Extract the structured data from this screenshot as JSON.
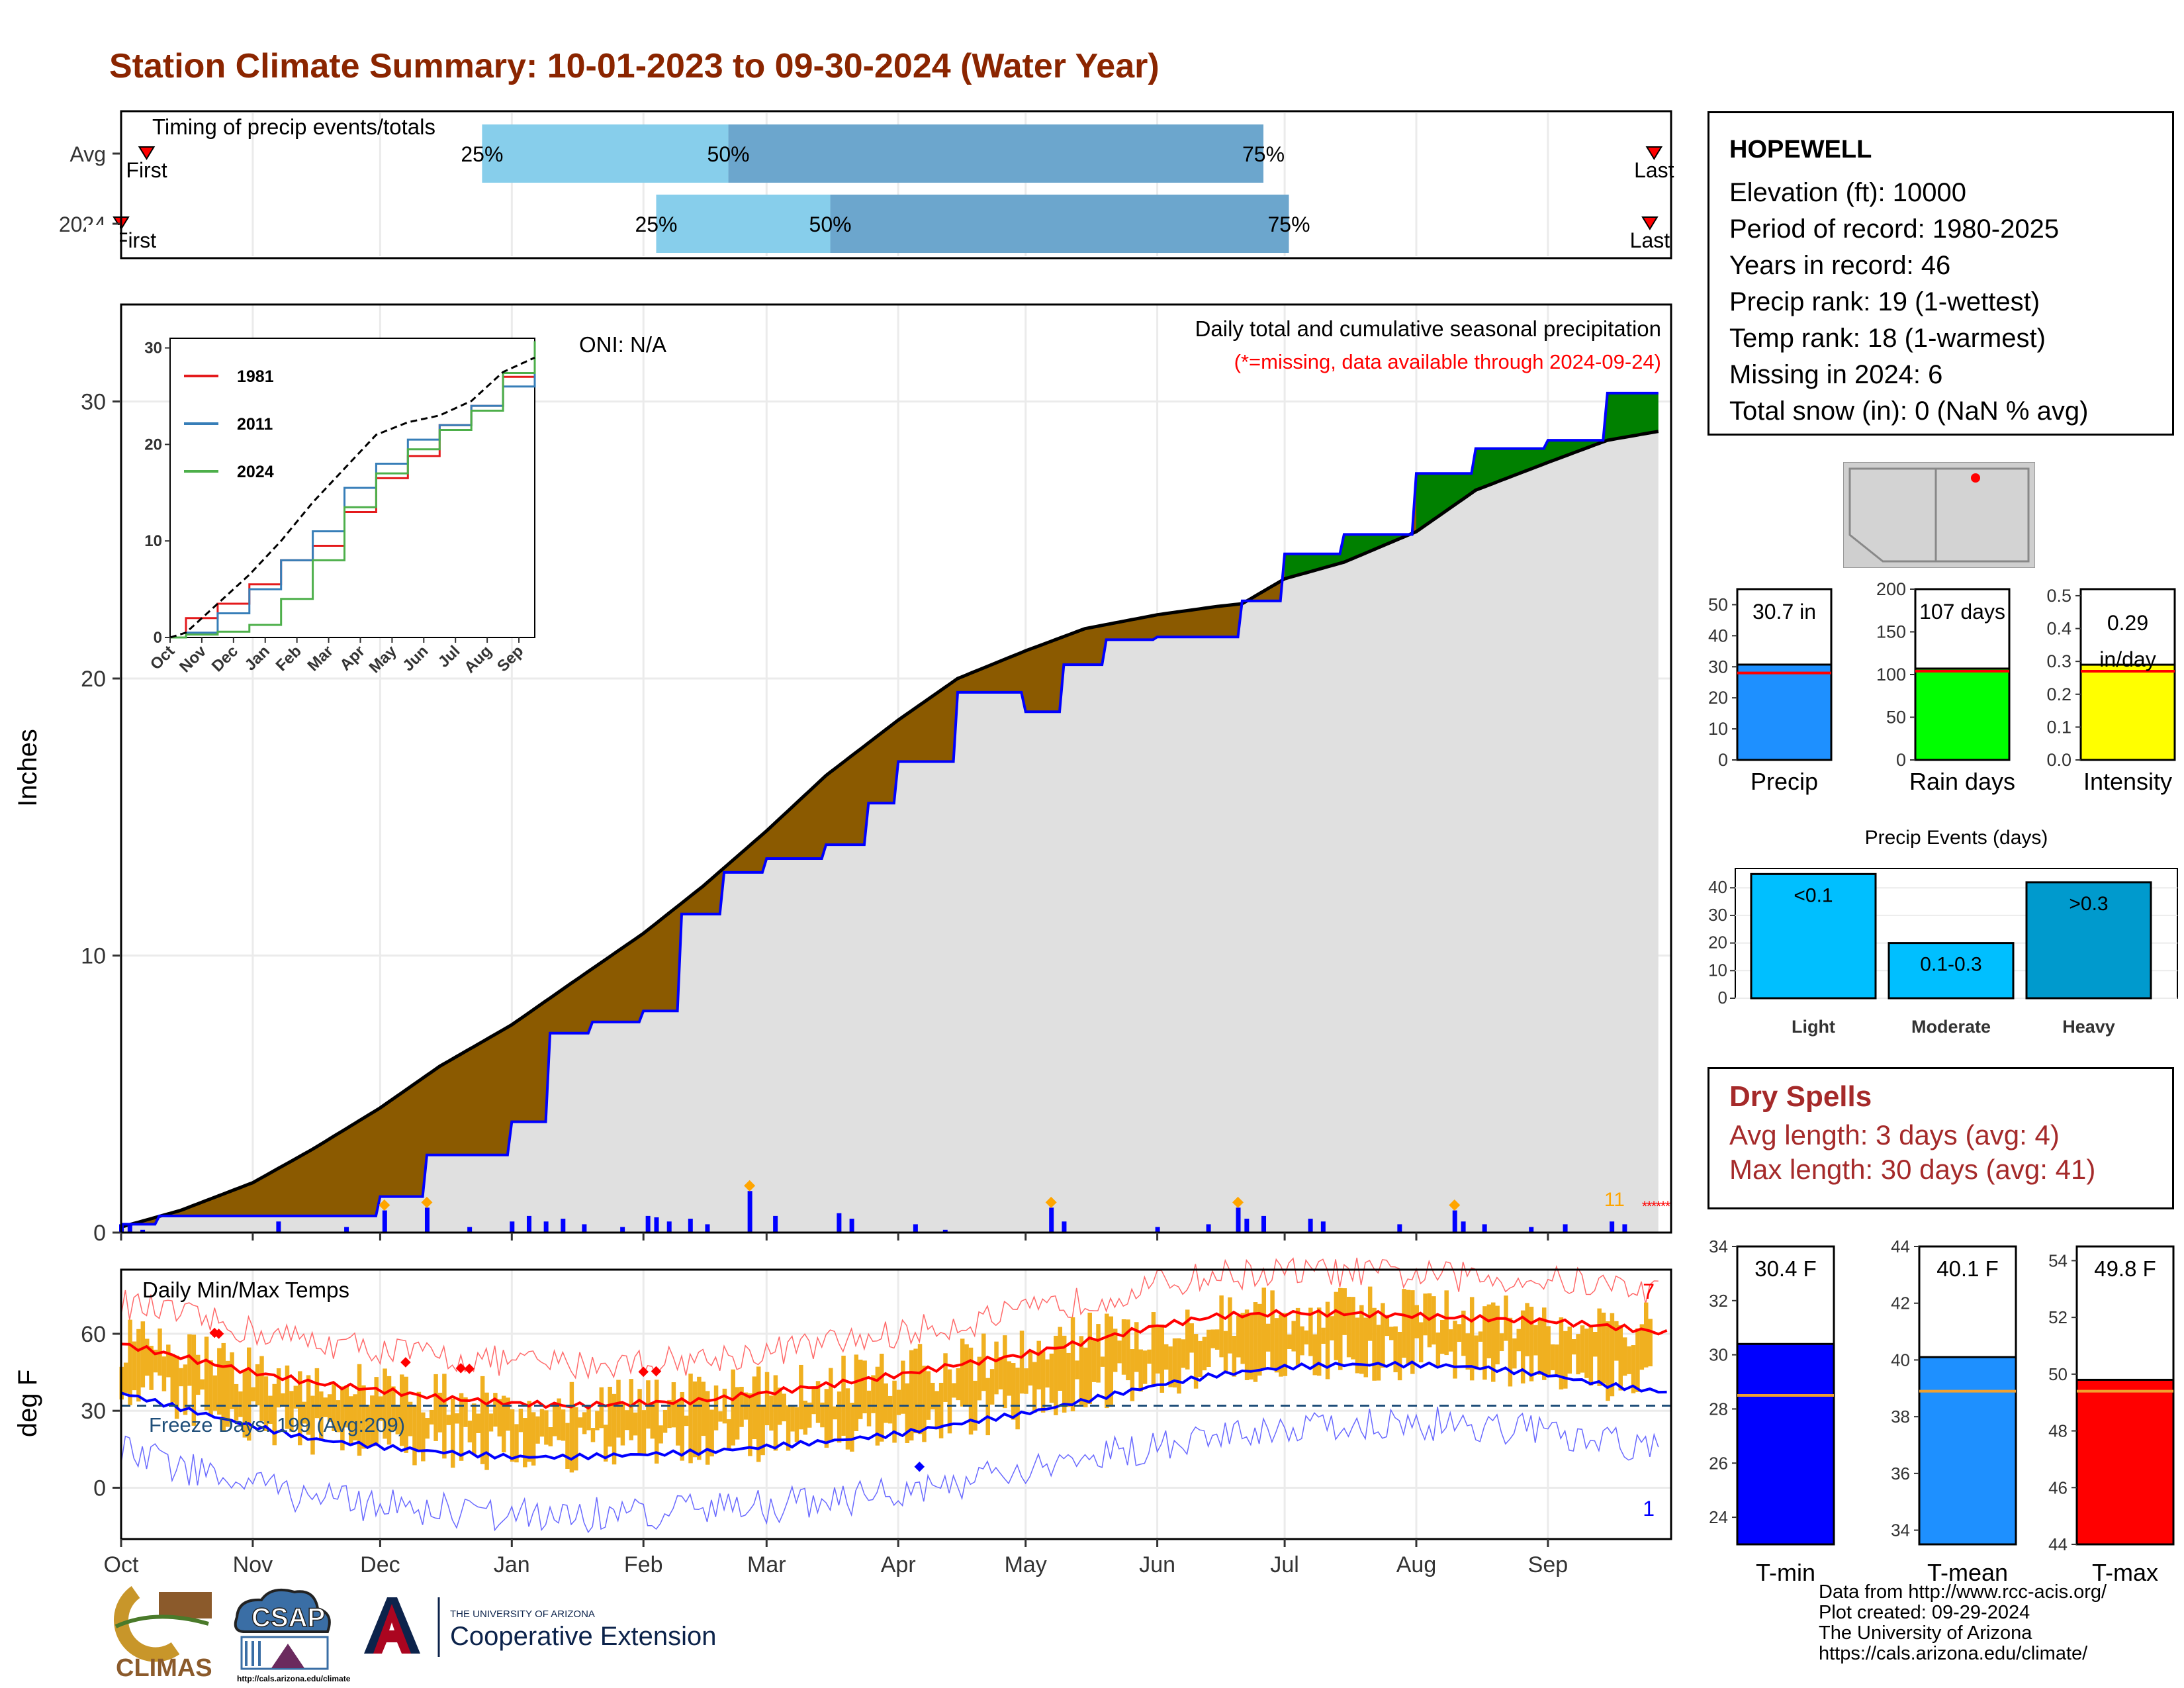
{
  "title": "Station Climate Summary: 10-01-2023 to 09-30-2024 (Water Year)",
  "station": {
    "name": "HOPEWELL",
    "lines": [
      "Elevation (ft): 10000",
      "Period of record: 1980-2025",
      "Years in record: 46",
      "Precip rank: 19 (1-wettest)",
      "Temp rank: 18 (1-warmest)",
      "Missing in 2024: 6",
      "Total snow (in): 0 (NaN % avg)"
    ]
  },
  "dry_spells": {
    "title": "Dry Spells",
    "avg_line": "Avg length: 3 days (avg: 4)",
    "max_line": "Max length: 30 days (avg: 41)"
  },
  "credits": {
    "lines": [
      "Data from http://www.rcc-acis.org/",
      "Plot created: 09-29-2024",
      "The University of Arizona",
      "https://cals.arizona.edu/climate/"
    ]
  },
  "logos": {
    "climas": "CLIMAS",
    "csap": "CSAP",
    "csap_url": "http://cals.arizona.edu/climate",
    "ua_line1": "THE UNIVERSITY OF ARIZONA",
    "ua_line2": "Cooperative Extension"
  },
  "colors": {
    "title": "#8b2500",
    "deficit_fill": "#8b5a00",
    "surplus_fill": "#008000",
    "observed_line": "#0000ff",
    "avg_line": "#000000",
    "area_fill": "#e0e0e0",
    "temp_bars": "#f0b020",
    "tmax_avg": "#ff0000",
    "tmin_avg": "#0000ff",
    "q_light": "#87ceeb",
    "q_dark": "#6ca6cd"
  },
  "chart_data": [
    {
      "id": "timing",
      "type": "bar",
      "title": "Timing of precip events/totals",
      "categories": [
        "Avg",
        "2024"
      ],
      "x_ticks": [
        "Oct",
        "Nov",
        "Dec",
        "Jan",
        "Feb",
        "Mar",
        "Apr",
        "May",
        "Jun",
        "Jul",
        "Aug",
        "Sep"
      ],
      "rows": [
        {
          "name": "Avg",
          "first": "Oct 7",
          "q25": "Dec 25",
          "q50": "Feb 21",
          "q75": "Jun 26",
          "last": "Sep 26",
          "first_label": "First",
          "last_label": "Last",
          "q25_label": "25%",
          "q50_label": "50%",
          "q75_label": "75%"
        },
        {
          "name": "2024",
          "first": "Oct 1",
          "q25": "Feb 4",
          "q50": "Mar 16",
          "q75": "Jul 2",
          "last": "Sep 25",
          "first_label": "First",
          "last_label": "Last",
          "q25_label": "25%",
          "q50_label": "50%",
          "q75_label": "75%"
        }
      ]
    },
    {
      "id": "cumulative_precip",
      "type": "area",
      "title": "Daily total and cumulative seasonal precipitation",
      "subtitle": "(*=missing, data available through 2024-09-24)",
      "annotation": "ONI: N/A",
      "missing_count_label": "11",
      "ylabel": "Inches",
      "ylim": [
        0,
        33.5
      ],
      "y_ticks": [
        0,
        10,
        20,
        30
      ],
      "x_ticks": [
        "Oct",
        "Nov",
        "Dec",
        "Jan",
        "Feb",
        "Mar",
        "Apr",
        "May",
        "Jun",
        "Jul",
        "Aug",
        "Sep"
      ],
      "series": [
        {
          "name": "Average cumulative",
          "x": [
            "Oct 1",
            "Oct 15",
            "Nov 1",
            "Nov 15",
            "Dec 1",
            "Dec 15",
            "Jan 1",
            "Jan 15",
            "Feb 1",
            "Feb 15",
            "Mar 1",
            "Mar 15",
            "Apr 1",
            "Apr 15",
            "May 1",
            "May 15",
            "Jun 1",
            "Jun 15",
            "Jun 21",
            "Jul 1",
            "Jul 15",
            "Aug 1",
            "Aug 15",
            "Sep 1",
            "Sep 15",
            "Sep 30"
          ],
          "y": [
            0.2,
            0.8,
            1.8,
            3.0,
            4.5,
            6.0,
            7.5,
            9.0,
            10.8,
            12.5,
            14.5,
            16.5,
            18.5,
            20.0,
            21.0,
            21.8,
            22.3,
            22.6,
            22.7,
            23.6,
            24.2,
            25.3,
            26.8,
            27.8,
            28.6,
            29.0
          ]
        },
        {
          "name": "2024 cumulative",
          "x": [
            "Oct 1",
            "Oct 10",
            "Nov 1",
            "Dec 1",
            "Dec 12",
            "Dec 13",
            "Jan 1",
            "Jan 10",
            "Jan 20",
            "Feb 1",
            "Feb 10",
            "Feb 20",
            "Mar 1",
            "Mar 15",
            "Mar 25",
            "Apr 1",
            "Apr 15",
            "May 1",
            "May 10",
            "May 20",
            "Jun 1",
            "Jun 20",
            "Jun 21",
            "Jul 1",
            "Jul 15",
            "Aug 1",
            "Aug 15",
            "Sep 1",
            "Sep 15",
            "Sep 28"
          ],
          "y": [
            0.3,
            0.6,
            0.6,
            1.3,
            2.8,
            2.8,
            4.0,
            7.2,
            7.6,
            8.0,
            11.5,
            13.0,
            13.5,
            14.0,
            15.5,
            17.0,
            19.5,
            18.8,
            20.5,
            21.4,
            21.5,
            21.5,
            22.8,
            24.5,
            25.2,
            27.4,
            28.3,
            28.6,
            30.3,
            30.7
          ]
        }
      ],
      "daily_x": [
        "Oct 1",
        "Oct 3",
        "Oct 6",
        "Nov 7",
        "Nov 23",
        "Dec 2",
        "Dec 12",
        "Dec 22",
        "Jan 1",
        "Jan 5",
        "Jan 9",
        "Jan 13",
        "Jan 18",
        "Jan 27",
        "Feb 2",
        "Feb 4",
        "Feb 7",
        "Feb 12",
        "Feb 16",
        "Feb 26",
        "Mar 3",
        "Mar 18",
        "Mar 21",
        "Apr 5",
        "Apr 12",
        "May 7",
        "May 10",
        "Jun 1",
        "Jun 13",
        "Jun 20",
        "Jun 22",
        "Jun 26",
        "Jul 7",
        "Jul 10",
        "Jul 28",
        "Aug 10",
        "Aug 12",
        "Aug 17",
        "Aug 28",
        "Sep 5",
        "Sep 16",
        "Sep 19"
      ],
      "daily_y": [
        0.3,
        0.25,
        0.1,
        0.4,
        0.2,
        0.8,
        0.9,
        0.2,
        0.4,
        0.6,
        0.4,
        0.5,
        0.3,
        0.2,
        0.6,
        0.55,
        0.4,
        0.5,
        0.3,
        1.5,
        0.6,
        0.7,
        0.5,
        0.3,
        0.1,
        0.9,
        0.4,
        0.2,
        0.3,
        0.9,
        0.5,
        0.6,
        0.5,
        0.4,
        0.3,
        0.8,
        0.4,
        0.3,
        0.2,
        0.3,
        0.4,
        0.3
      ]
    },
    {
      "id": "inset_years",
      "type": "line",
      "categories": [
        "Oct",
        "Nov",
        "Dec",
        "Jan",
        "Feb",
        "Mar",
        "Apr",
        "May",
        "Jun",
        "Jul",
        "Aug",
        "Sep"
      ],
      "ylim": [
        0,
        31
      ],
      "y_ticks": [
        0,
        10,
        20,
        30
      ],
      "series": [
        {
          "name": "1981",
          "color": "#e41a1c",
          "values": [
            2.0,
            3.5,
            5.5,
            8.0,
            9.5,
            13.0,
            16.5,
            18.8,
            22.0,
            24.0,
            27.0,
            30.5
          ]
        },
        {
          "name": "2011",
          "color": "#377eb8",
          "values": [
            0.5,
            2.5,
            5.0,
            8.0,
            11.0,
            15.5,
            18.0,
            20.5,
            22.0,
            24.0,
            26.0,
            28.5
          ]
        },
        {
          "name": "2024",
          "color": "#4daf4a",
          "values": [
            0.3,
            0.6,
            1.3,
            4.0,
            8.0,
            13.5,
            17.0,
            19.5,
            21.5,
            23.5,
            27.4,
            30.7
          ]
        },
        {
          "values": [
            0.5,
            3.5,
            6.5,
            10.0,
            14.0,
            17.5,
            21.0,
            22.3,
            23.0,
            24.5,
            27.5,
            29.0
          ],
          "color": "#000000"
        }
      ]
    },
    {
      "id": "daily_temps",
      "type": "bar",
      "title": "Daily Min/Max Temps",
      "ylabel": "deg F",
      "ylim": [
        -20,
        85
      ],
      "y_ticks": [
        0,
        30,
        60
      ],
      "x_ticks": [
        "Oct",
        "Nov",
        "Dec",
        "Jan",
        "Feb",
        "Mar",
        "Apr",
        "May",
        "Jun",
        "Jul",
        "Aug",
        "Sep"
      ],
      "freeze_label": "Freeze Days: 199 (Avg:209)",
      "record_high_count": "7",
      "record_low_count": "1",
      "freezing_line": 32,
      "series": [
        {
          "name": "Avg Tmax (smoothed)",
          "x": [
            "Oct 1",
            "Oct 15",
            "Nov 1",
            "Nov 15",
            "Dec 1",
            "Dec 15",
            "Jan 1",
            "Jan 15",
            "Feb 1",
            "Feb 15",
            "Mar 1",
            "Mar 15",
            "Apr 1",
            "Apr 15",
            "May 1",
            "May 15",
            "Jun 1",
            "Jun 15",
            "Jul 1",
            "Jul 15",
            "Aug 1",
            "Aug 15",
            "Sep 1",
            "Sep 15",
            "Sep 30"
          ],
          "y": [
            56,
            51,
            45,
            41,
            38,
            35,
            33,
            32,
            33,
            34,
            37,
            40,
            44,
            48,
            52,
            57,
            63,
            67,
            68,
            68,
            67,
            66,
            65,
            63,
            60
          ]
        },
        {
          "name": "Avg Tmin (smoothed)",
          "x": [
            "Oct 1",
            "Oct 15",
            "Nov 1",
            "Nov 15",
            "Dec 1",
            "Dec 15",
            "Jan 1",
            "Jan 15",
            "Feb 1",
            "Feb 15",
            "Mar 1",
            "Mar 15",
            "Apr 1",
            "Apr 15",
            "May 1",
            "May 15",
            "Jun 1",
            "Jun 15",
            "Jul 1",
            "Jul 15",
            "Aug 1",
            "Aug 15",
            "Sep 1",
            "Sep 15",
            "Sep 30"
          ],
          "y": [
            37,
            31,
            24,
            19,
            16,
            14,
            12,
            12,
            13,
            14,
            16,
            18,
            21,
            25,
            29,
            34,
            40,
            44,
            47,
            48,
            48,
            47,
            44,
            40,
            37
          ]
        }
      ]
    },
    {
      "id": "precip_total",
      "type": "bar",
      "categories": [
        "Precip"
      ],
      "values": [
        30.7
      ],
      "avg": 28.0,
      "label": "30.7 in",
      "ylim": [
        0,
        55
      ],
      "y_ticks": [
        0,
        10,
        20,
        30,
        40,
        50
      ],
      "color": "#1e90ff"
    },
    {
      "id": "rain_days",
      "type": "bar",
      "categories": [
        "Rain days"
      ],
      "values": [
        107
      ],
      "avg": 104,
      "label": "107 days",
      "ylim": [
        0,
        200
      ],
      "y_ticks": [
        0,
        50,
        100,
        150,
        200
      ],
      "color": "#00ff00"
    },
    {
      "id": "intensity",
      "type": "bar",
      "categories": [
        "Intensity"
      ],
      "values": [
        0.29
      ],
      "avg": 0.27,
      "label": "0.29",
      "label2": "in/day",
      "ylim": [
        0,
        0.52
      ],
      "y_ticks": [
        0.0,
        0.1,
        0.2,
        0.3,
        0.4,
        0.5
      ],
      "color": "#ffff00"
    },
    {
      "id": "precip_events",
      "type": "bar",
      "title": "Precip Events (days)",
      "categories": [
        "Light",
        "Moderate",
        "Heavy"
      ],
      "values": [
        45,
        20,
        42
      ],
      "bar_labels": [
        "<0.1",
        "0.1-0.3",
        ">0.3"
      ],
      "colors": [
        "#00bfff",
        "#00bfff",
        "#009acd"
      ],
      "ylim": [
        0,
        47
      ],
      "y_ticks": [
        0,
        10,
        20,
        30,
        40
      ]
    },
    {
      "id": "tmin_annual",
      "type": "bar",
      "categories": [
        "T-min"
      ],
      "values": [
        30.4
      ],
      "avg": 28.5,
      "label": "30.4 F",
      "ylim": [
        23,
        34
      ],
      "y_ticks": [
        24,
        26,
        28,
        30,
        32,
        34
      ],
      "color": "#0000ff"
    },
    {
      "id": "tmean_annual",
      "type": "bar",
      "categories": [
        "T-mean"
      ],
      "values": [
        40.1
      ],
      "avg": 38.9,
      "label": "40.1 F",
      "ylim": [
        33.5,
        44
      ],
      "y_ticks": [
        34,
        36,
        38,
        40,
        42,
        44
      ],
      "color": "#1e90ff"
    },
    {
      "id": "tmax_annual",
      "type": "bar",
      "categories": [
        "T-max"
      ],
      "values": [
        49.8
      ],
      "avg": 49.4,
      "label": "49.8 F",
      "ylim": [
        44,
        54.5
      ],
      "y_ticks": [
        44,
        46,
        48,
        50,
        52,
        54
      ],
      "color": "#ff0000"
    }
  ]
}
